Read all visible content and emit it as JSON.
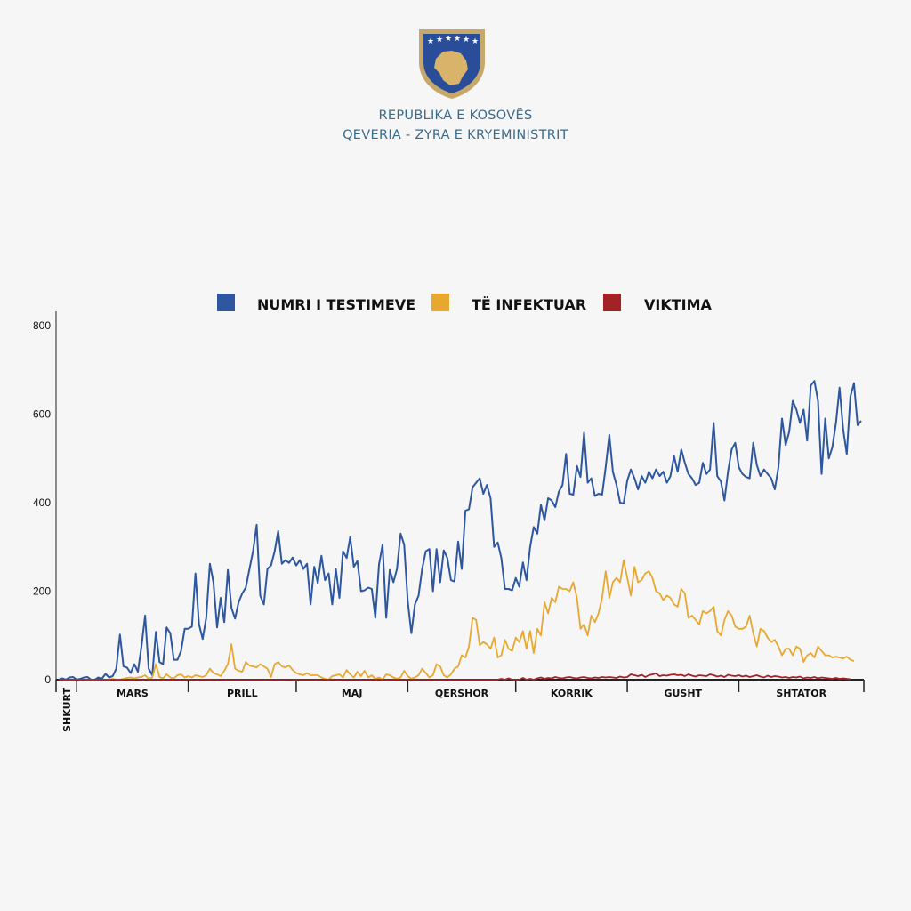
{
  "header": {
    "line1": "REPUBLIKA E KOSOVËS",
    "line2": "QEVERIA - ZYRA E KRYEMINISTRIT",
    "emblem_icon": "kosovo-coat-of-arms-icon"
  },
  "colors": {
    "background": "#f6f6f6",
    "header_text": "#3a6b8a",
    "tests": "#2e57a0",
    "infected": "#e8a830",
    "deaths": "#a32226"
  },
  "chart_data": {
    "type": "line",
    "y_ticks": [
      "800",
      "600",
      "400",
      "200",
      "0"
    ],
    "ylim": [
      0,
      800
    ],
    "grid": false,
    "legend_position": "top",
    "months": [
      {
        "label": "SHKURT",
        "days": 5
      },
      {
        "label": "MARS",
        "days": 31
      },
      {
        "label": "PRILL",
        "days": 30
      },
      {
        "label": "MAJ",
        "days": 31
      },
      {
        "label": "QERSHOR",
        "days": 30
      },
      {
        "label": "KORRIK",
        "days": 31
      },
      {
        "label": "GUSHT",
        "days": 31
      },
      {
        "label": "SHTATOR",
        "days": 30
      }
    ],
    "series": [
      {
        "name": "NUMRI I TESTIMEVE",
        "color": "#2e57a0",
        "values": [
          0,
          3,
          0,
          5,
          6,
          0,
          2,
          5,
          6,
          0,
          0,
          5,
          2,
          13,
          5,
          8,
          25,
          102,
          30,
          27,
          15,
          35,
          18,
          75,
          145,
          25,
          10,
          108,
          40,
          35,
          118,
          105,
          45,
          45,
          65,
          115,
          115,
          120,
          240,
          125,
          92,
          140,
          262,
          220,
          118,
          185,
          130,
          248,
          162,
          138,
          175,
          195,
          208,
          250,
          290,
          350,
          190,
          170,
          250,
          258,
          290,
          336,
          262,
          270,
          264,
          276,
          258,
          270,
          250,
          262,
          170,
          255,
          218,
          280,
          225,
          240,
          170,
          250,
          185,
          290,
          275,
          322,
          255,
          268,
          200,
          202,
          208,
          205,
          140,
          260,
          305,
          140,
          248,
          220,
          250,
          330,
          305,
          178,
          105,
          170,
          190,
          250,
          290,
          295,
          200,
          295,
          220,
          292,
          275,
          225,
          222,
          312,
          250,
          382,
          385,
          435,
          445,
          455,
          420,
          440,
          410,
          300,
          310,
          275,
          205,
          205,
          202,
          230,
          210,
          265,
          225,
          300,
          345,
          330,
          395,
          360,
          410,
          405,
          390,
          425,
          440,
          510,
          420,
          418,
          483,
          458,
          558,
          445,
          455,
          415,
          420,
          418,
          480,
          553,
          470,
          440,
          400,
          398,
          450,
          475,
          455,
          430,
          460,
          445,
          470,
          455,
          475,
          460,
          470,
          445,
          460,
          505,
          470,
          520,
          490,
          465,
          455,
          440,
          445,
          490,
          465,
          475,
          580,
          460,
          448,
          405,
          470,
          520,
          535,
          480,
          465,
          458,
          455,
          535,
          485,
          460,
          475,
          465,
          455,
          430,
          480,
          590,
          530,
          560,
          630,
          610,
          580,
          610,
          540,
          665,
          675,
          630,
          465,
          590,
          500,
          525,
          580,
          660,
          565,
          510,
          640,
          670,
          575,
          585
        ]
      },
      {
        "name": "TË INFEKTUAR",
        "color": "#e8a830",
        "values": [
          0,
          0,
          0,
          0,
          0,
          0,
          0,
          0,
          0,
          0,
          0,
          0,
          0,
          0,
          0,
          2,
          0,
          0,
          2,
          4,
          5,
          3,
          5,
          6,
          10,
          2,
          5,
          35,
          6,
          3,
          12,
          5,
          3,
          10,
          12,
          5,
          8,
          5,
          10,
          8,
          6,
          10,
          25,
          15,
          12,
          8,
          20,
          35,
          80,
          25,
          20,
          18,
          40,
          32,
          30,
          28,
          35,
          30,
          25,
          6,
          35,
          40,
          30,
          28,
          32,
          22,
          15,
          12,
          10,
          15,
          10,
          10,
          10,
          5,
          2,
          0,
          8,
          10,
          12,
          5,
          22,
          12,
          5,
          18,
          8,
          20,
          5,
          10,
          2,
          5,
          0,
          12,
          10,
          5,
          2,
          5,
          20,
          8,
          2,
          5,
          10,
          25,
          15,
          5,
          10,
          35,
          30,
          10,
          5,
          12,
          25,
          30,
          55,
          50,
          75,
          140,
          135,
          78,
          85,
          80,
          70,
          95,
          50,
          55,
          90,
          70,
          65,
          95,
          85,
          110,
          70,
          110,
          60,
          115,
          100,
          175,
          150,
          185,
          175,
          210,
          205,
          205,
          200,
          220,
          185,
          115,
          125,
          100,
          145,
          130,
          150,
          185,
          245,
          185,
          220,
          230,
          220,
          270,
          230,
          190,
          255,
          220,
          225,
          240,
          245,
          230,
          200,
          195,
          180,
          190,
          185,
          170,
          165,
          205,
          195,
          140,
          145,
          135,
          125,
          155,
          150,
          155,
          165,
          110,
          100,
          135,
          155,
          145,
          120,
          115,
          115,
          120,
          145,
          105,
          75,
          115,
          110,
          95,
          85,
          90,
          75,
          55,
          70,
          70,
          55,
          75,
          70,
          40,
          55,
          60,
          50,
          75,
          65,
          55,
          55,
          50,
          52,
          50,
          48,
          52,
          45,
          42
        ]
      },
      {
        "name": "VIKTIMA",
        "color": "#a32226",
        "values": [
          0,
          0,
          0,
          0,
          0,
          0,
          0,
          0,
          0,
          0,
          0,
          0,
          0,
          0,
          0,
          0,
          0,
          0,
          0,
          0,
          0,
          0,
          0,
          0,
          0,
          0,
          0,
          0,
          0,
          0,
          0,
          0,
          0,
          0,
          0,
          0,
          0,
          0,
          0,
          0,
          0,
          0,
          0,
          0,
          0,
          0,
          0,
          0,
          0,
          0,
          0,
          0,
          0,
          0,
          0,
          0,
          0,
          0,
          0,
          0,
          0,
          0,
          0,
          0,
          0,
          0,
          0,
          0,
          0,
          0,
          0,
          0,
          0,
          0,
          0,
          0,
          0,
          0,
          0,
          0,
          0,
          0,
          0,
          0,
          0,
          0,
          0,
          0,
          0,
          0,
          0,
          0,
          0,
          0,
          0,
          0,
          0,
          0,
          0,
          0,
          0,
          0,
          0,
          0,
          0,
          0,
          0,
          0,
          0,
          0,
          0,
          0,
          0,
          0,
          0,
          0,
          0,
          0,
          0,
          0,
          0,
          0,
          0,
          2,
          0,
          3,
          0,
          0,
          0,
          4,
          0,
          2,
          0,
          3,
          5,
          2,
          4,
          3,
          6,
          4,
          3,
          5,
          6,
          4,
          3,
          5,
          6,
          4,
          3,
          5,
          4,
          6,
          5,
          6,
          5,
          4,
          7,
          5,
          6,
          12,
          10,
          8,
          11,
          6,
          10,
          12,
          14,
          8,
          10,
          9,
          11,
          12,
          10,
          11,
          8,
          12,
          9,
          7,
          10,
          9,
          8,
          12,
          10,
          7,
          9,
          6,
          11,
          9,
          8,
          10,
          7,
          9,
          6,
          8,
          10,
          7,
          5,
          9,
          6,
          8,
          7,
          5,
          6,
          4,
          6,
          5,
          7,
          3,
          5,
          4,
          6,
          3,
          5,
          4,
          3,
          2,
          4,
          2,
          3,
          2,
          1
        ]
      }
    ]
  }
}
